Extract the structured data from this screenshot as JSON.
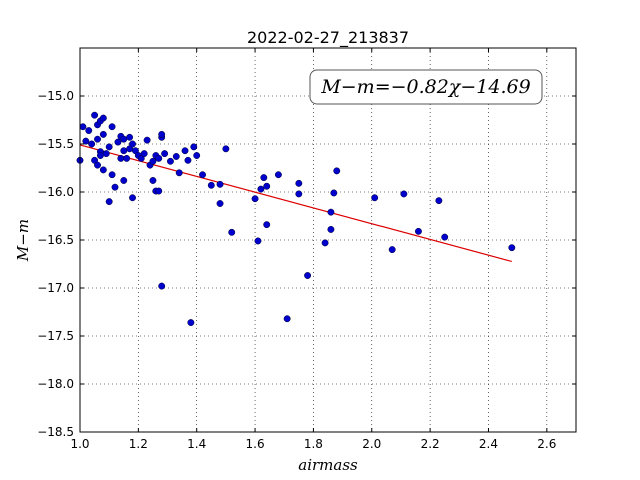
{
  "chart_data": {
    "type": "scatter",
    "title": "2022-02-27_213837",
    "xlabel": "airmass",
    "ylabel": "M−m",
    "xlim": [
      1.0,
      2.7
    ],
    "ylim": [
      -18.5,
      -14.5
    ],
    "y_inverted": true,
    "grid": true,
    "grid_style": "dotted",
    "x_ticks": [
      "1.0",
      "1.2",
      "1.4",
      "1.6",
      "1.8",
      "2.0",
      "2.2",
      "2.4",
      "2.6"
    ],
    "y_ticks": [
      "−15.0",
      "−15.5",
      "−16.0",
      "−16.5",
      "−17.0",
      "−17.5",
      "−18.0",
      "−18.5"
    ],
    "annotation": "M−m=−0.82χ−14.69",
    "annotation_position": "top-right",
    "point_color": "#0000cc",
    "fit_color": "#dd0000",
    "fit": {
      "slope": -0.82,
      "intercept": -14.69,
      "x_range": [
        1.0,
        2.48
      ]
    },
    "points": [
      [
        1.0,
        -15.67
      ],
      [
        1.01,
        -15.32
      ],
      [
        1.02,
        -15.47
      ],
      [
        1.03,
        -15.36
      ],
      [
        1.04,
        -15.5
      ],
      [
        1.05,
        -15.2
      ],
      [
        1.05,
        -15.67
      ],
      [
        1.06,
        -15.45
      ],
      [
        1.06,
        -15.72
      ],
      [
        1.06,
        -15.3
      ],
      [
        1.07,
        -15.26
      ],
      [
        1.07,
        -15.58
      ],
      [
        1.07,
        -15.62
      ],
      [
        1.08,
        -15.23
      ],
      [
        1.08,
        -15.4
      ],
      [
        1.08,
        -15.77
      ],
      [
        1.09,
        -15.6
      ],
      [
        1.1,
        -16.1
      ],
      [
        1.1,
        -15.53
      ],
      [
        1.11,
        -15.82
      ],
      [
        1.11,
        -15.32
      ],
      [
        1.12,
        -15.95
      ],
      [
        1.13,
        -15.48
      ],
      [
        1.14,
        -15.42
      ],
      [
        1.14,
        -15.65
      ],
      [
        1.15,
        -15.57
      ],
      [
        1.15,
        -15.88
      ],
      [
        1.15,
        -15.45
      ],
      [
        1.16,
        -15.65
      ],
      [
        1.17,
        -15.55
      ],
      [
        1.17,
        -15.43
      ],
      [
        1.18,
        -16.06
      ],
      [
        1.18,
        -15.5
      ],
      [
        1.19,
        -15.57
      ],
      [
        1.2,
        -15.62
      ],
      [
        1.21,
        -15.65
      ],
      [
        1.22,
        -15.6
      ],
      [
        1.23,
        -15.46
      ],
      [
        1.24,
        -15.72
      ],
      [
        1.25,
        -15.68
      ],
      [
        1.25,
        -15.88
      ],
      [
        1.26,
        -15.62
      ],
      [
        1.26,
        -15.99
      ],
      [
        1.27,
        -15.65
      ],
      [
        1.27,
        -15.99
      ],
      [
        1.28,
        -15.43
      ],
      [
        1.28,
        -15.4
      ],
      [
        1.28,
        -16.98
      ],
      [
        1.29,
        -15.6
      ],
      [
        1.31,
        -15.68
      ],
      [
        1.33,
        -15.63
      ],
      [
        1.34,
        -15.8
      ],
      [
        1.36,
        -15.57
      ],
      [
        1.37,
        -15.67
      ],
      [
        1.38,
        -17.36
      ],
      [
        1.39,
        -15.53
      ],
      [
        1.4,
        -15.62
      ],
      [
        1.42,
        -15.82
      ],
      [
        1.45,
        -15.93
      ],
      [
        1.48,
        -16.12
      ],
      [
        1.48,
        -15.92
      ],
      [
        1.5,
        -15.55
      ],
      [
        1.52,
        -16.42
      ],
      [
        1.6,
        -16.07
      ],
      [
        1.61,
        -16.51
      ],
      [
        1.62,
        -15.97
      ],
      [
        1.63,
        -15.85
      ],
      [
        1.64,
        -15.94
      ],
      [
        1.64,
        -16.34
      ],
      [
        1.68,
        -15.82
      ],
      [
        1.71,
        -17.32
      ],
      [
        1.75,
        -15.91
      ],
      [
        1.75,
        -16.02
      ],
      [
        1.78,
        -16.87
      ],
      [
        1.84,
        -16.53
      ],
      [
        1.86,
        -16.21
      ],
      [
        1.86,
        -16.39
      ],
      [
        1.87,
        -16.01
      ],
      [
        1.88,
        -15.78
      ],
      [
        2.01,
        -16.06
      ],
      [
        2.07,
        -16.6
      ],
      [
        2.11,
        -16.02
      ],
      [
        2.16,
        -16.41
      ],
      [
        2.23,
        -16.09
      ],
      [
        2.25,
        -16.47
      ],
      [
        2.48,
        -16.58
      ]
    ]
  }
}
